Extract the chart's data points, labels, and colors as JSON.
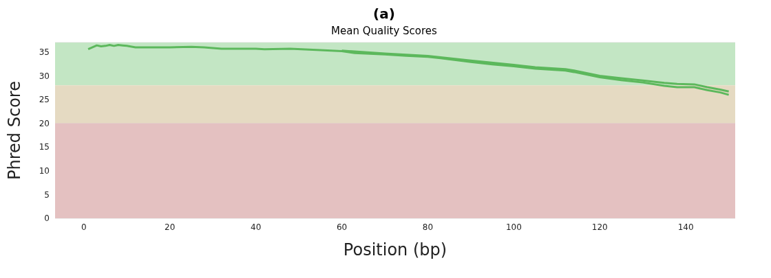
{
  "chart_data": {
    "type": "line",
    "title": "Mean Quality Scores",
    "annotations": [
      "(a)"
    ],
    "xlabel": "Position (bp)",
    "ylabel": "Phred Score",
    "xlim": [
      -6.7,
      151.5
    ],
    "xticks": [
      0,
      20,
      40,
      60,
      80,
      100,
      120,
      140
    ],
    "ylim": [
      0,
      37
    ],
    "yticks": [
      0,
      5,
      10,
      15,
      20,
      25,
      30,
      35
    ],
    "grid": "y",
    "marker": "none",
    "line_style": "solid",
    "bands": [
      {
        "axis": "y",
        "from": 28,
        "to": 37,
        "color": "#c3e6c4"
      },
      {
        "axis": "y",
        "from": 20,
        "to": 28,
        "color": "#e5dac2"
      },
      {
        "axis": "y",
        "from": 0,
        "to": 20,
        "color": "#e4c1c1"
      }
    ],
    "series": [
      {
        "color": "#5cb85c",
        "x": [
          1,
          2,
          3,
          4,
          5,
          6,
          7,
          8,
          9,
          10,
          12,
          20,
          25,
          28,
          32,
          40,
          42,
          48,
          55,
          60,
          63,
          70,
          75,
          80,
          83,
          90,
          95,
          100,
          105,
          112,
          114,
          120,
          125,
          130,
          135,
          138,
          142,
          145,
          148,
          150
        ],
        "values": [
          35.6,
          36.0,
          36.4,
          36.2,
          36.3,
          36.5,
          36.3,
          36.5,
          36.4,
          36.3,
          36.0,
          36.0,
          36.1,
          36.0,
          35.7,
          35.7,
          35.6,
          35.7,
          35.4,
          35.2,
          34.8,
          34.5,
          34.2,
          34.0,
          33.7,
          32.9,
          32.4,
          32.0,
          31.5,
          31.1,
          30.8,
          29.7,
          29.1,
          28.6,
          27.9,
          27.6,
          27.6,
          27.0,
          26.5,
          26.0
        ]
      },
      {
        "color": "#5cb85c",
        "x": [
          60,
          70,
          80,
          90,
          100,
          105,
          112,
          114,
          120,
          125,
          130,
          135,
          138,
          142,
          145,
          148,
          150
        ],
        "values": [
          35.3,
          34.7,
          34.2,
          33.2,
          32.3,
          31.8,
          31.4,
          31.1,
          30.0,
          29.5,
          29.0,
          28.5,
          28.3,
          28.2,
          27.6,
          27.1,
          26.7
        ]
      }
    ]
  }
}
